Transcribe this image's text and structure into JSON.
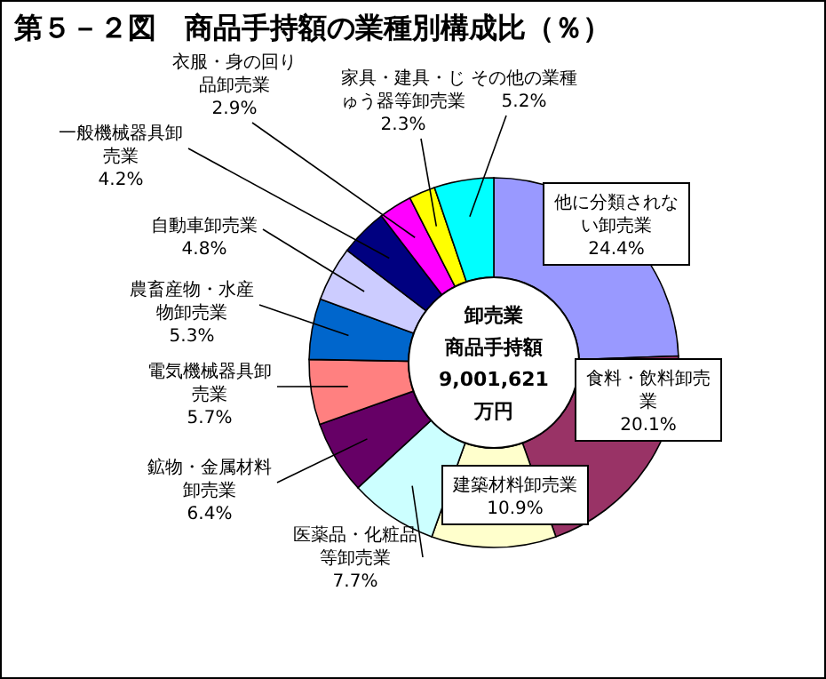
{
  "chart_data": {
    "type": "donut",
    "title": "第５－２図　商品手持額の業種別構成比（％）",
    "categories": [
      "他に分類されない卸売業",
      "食料・飲料卸売業",
      "建築材料卸売業",
      "医薬品・化粧品等卸売業",
      "鉱物・金属材料卸売業",
      "電気機械器具卸売業",
      "農畜産物・水産物卸売業",
      "自動車卸売業",
      "一般機械器具卸売業",
      "衣服・身の回り品卸売業",
      "家具・建具・じゅう器等卸売業",
      "その他の業種"
    ],
    "values": [
      24.4,
      20.1,
      10.9,
      7.7,
      6.4,
      5.7,
      5.3,
      4.8,
      4.2,
      2.9,
      2.3,
      5.2
    ],
    "value_labels": [
      "24.4%",
      "20.1%",
      "10.9%",
      "7.7%",
      "6.4%",
      "5.7%",
      "5.3%",
      "4.8%",
      "4.2%",
      "2.9%",
      "2.3%",
      "5.2%"
    ],
    "colors": [
      "#9999ff",
      "#993366",
      "#ffffcc",
      "#ccffff",
      "#660066",
      "#ff8080",
      "#0066cc",
      "#ccccff",
      "#000080",
      "#ff00ff",
      "#ffff00",
      "#00ffff"
    ],
    "annotations": [
      "卸売業",
      "商品手持額",
      "9,001,621",
      "万円"
    ]
  }
}
